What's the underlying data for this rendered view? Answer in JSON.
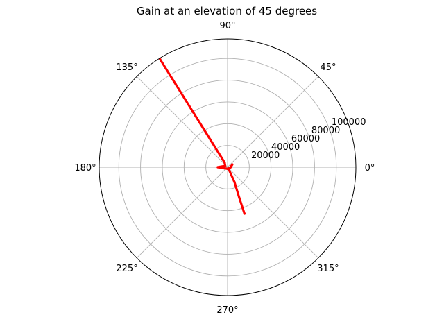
{
  "chart_data": {
    "type": "polar-line",
    "title": "Gain at an elevation of 45 degrees",
    "theta_unit": "degrees",
    "theta_ticks": [
      0,
      45,
      90,
      135,
      180,
      225,
      270,
      315
    ],
    "theta_tick_labels": [
      "0°",
      "45°",
      "90°",
      "135°",
      "180°",
      "225°",
      "270°",
      "315°"
    ],
    "r_ticks": [
      20000,
      40000,
      60000,
      80000,
      100000
    ],
    "r_tick_labels": [
      "20000",
      "40000",
      "60000",
      "80000",
      "100000"
    ],
    "rlim": [
      0,
      118000
    ],
    "grid": true,
    "series": [
      {
        "color": "#ff0000",
        "points": [
          {
            "theta": 122,
            "r": 117000
          },
          {
            "theta": 122,
            "r": 90000
          },
          {
            "theta": 122,
            "r": 60000
          },
          {
            "theta": 122,
            "r": 30000
          },
          {
            "theta": 122,
            "r": 5000
          },
          {
            "theta": 150,
            "r": 2500
          },
          {
            "theta": 180,
            "r": 9000
          },
          {
            "theta": 200,
            "r": 3000
          },
          {
            "theta": 270,
            "r": 1500
          },
          {
            "theta": 0,
            "r": 3000
          },
          {
            "theta": 30,
            "r": 5000
          },
          {
            "theta": 300,
            "r": 2500
          },
          {
            "theta": 295,
            "r": 15000
          },
          {
            "theta": 291,
            "r": 30000
          },
          {
            "theta": 290,
            "r": 45500
          }
        ]
      }
    ]
  }
}
